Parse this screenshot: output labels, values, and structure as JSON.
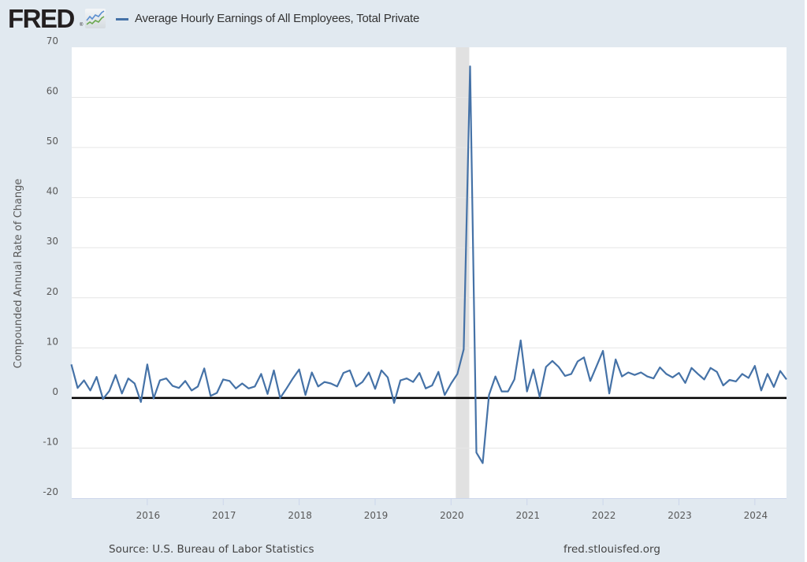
{
  "header": {
    "logo_text": "FRED",
    "logo_reg": "®",
    "logo_icon": "line-chart-icon"
  },
  "footer": {
    "source": "Source: U.S. Bureau of Labor Statistics",
    "site": "fred.stlouisfed.org"
  },
  "colors": {
    "background": "#e1e9f0",
    "plot_background": "#ffffff",
    "series": "#4572a7",
    "recession": "#e1e1e1",
    "gridline": "#e6e6e6",
    "zero_line": "#000000"
  },
  "chart_data": {
    "type": "line",
    "title": "",
    "legend": [
      {
        "name": "Average Hourly Earnings of All Employees, Total Private",
        "color": "#4572a7"
      }
    ],
    "legend_placement": "top-left",
    "xlabel": "",
    "ylabel": "Compounded Annual Rate of Change",
    "ylim": [
      -20,
      70
    ],
    "yticks": [
      -20,
      -10,
      0,
      10,
      20,
      30,
      40,
      50,
      60,
      70
    ],
    "ytick_labels": [
      "-20",
      "-10",
      "0",
      "10",
      "20",
      "30",
      "40",
      "50",
      "60",
      "70"
    ],
    "xlim": [
      "2015-01",
      "2024-06"
    ],
    "xticks": [
      "2016-01",
      "2017-01",
      "2018-01",
      "2019-01",
      "2020-01",
      "2021-01",
      "2022-01",
      "2023-01",
      "2024-01"
    ],
    "xtick_labels": [
      "2016",
      "2017",
      "2018",
      "2019",
      "2020",
      "2021",
      "2022",
      "2023",
      "2024"
    ],
    "grid": true,
    "zero_line": true,
    "recession_shading": [
      {
        "start": "2020-02",
        "end": "2020-04"
      }
    ],
    "start": "2015-01",
    "frequency": "monthly",
    "series": [
      {
        "name": "Average Hourly Earnings of All Employees, Total Private",
        "values": [
          6.7,
          2.0,
          3.5,
          1.5,
          4.2,
          -0.2,
          1.4,
          4.6,
          0.9,
          3.9,
          2.9,
          -0.8,
          6.7,
          -0.1,
          3.5,
          3.9,
          2.4,
          2.0,
          3.4,
          1.5,
          2.3,
          5.9,
          0.4,
          1.0,
          3.7,
          3.4,
          1.9,
          2.9,
          1.9,
          2.3,
          4.8,
          0.8,
          5.5,
          0.0,
          1.9,
          3.9,
          5.7,
          0.6,
          5.1,
          2.3,
          3.2,
          2.9,
          2.3,
          5.0,
          5.5,
          2.3,
          3.2,
          5.1,
          1.8,
          5.5,
          4.1,
          -1.0,
          3.5,
          3.9,
          3.2,
          5.0,
          1.9,
          2.5,
          5.2,
          0.6,
          2.9,
          4.8,
          9.7,
          66.2,
          -10.9,
          -13.0,
          0.6,
          4.3,
          1.3,
          1.3,
          3.7,
          11.5,
          1.3,
          5.7,
          0.2,
          6.2,
          7.4,
          6.2,
          4.4,
          4.8,
          7.3,
          8.1,
          3.4,
          6.4,
          9.4,
          0.9,
          7.7,
          4.3,
          5.1,
          4.6,
          5.1,
          4.3,
          3.9,
          6.1,
          4.8,
          4.1,
          5.0,
          3.0,
          6.0,
          4.8,
          3.7,
          6.0,
          5.2,
          2.5,
          3.6,
          3.3,
          4.8,
          4.0,
          6.4,
          1.5,
          4.8,
          2.2,
          5.4,
          3.7
        ]
      }
    ]
  }
}
